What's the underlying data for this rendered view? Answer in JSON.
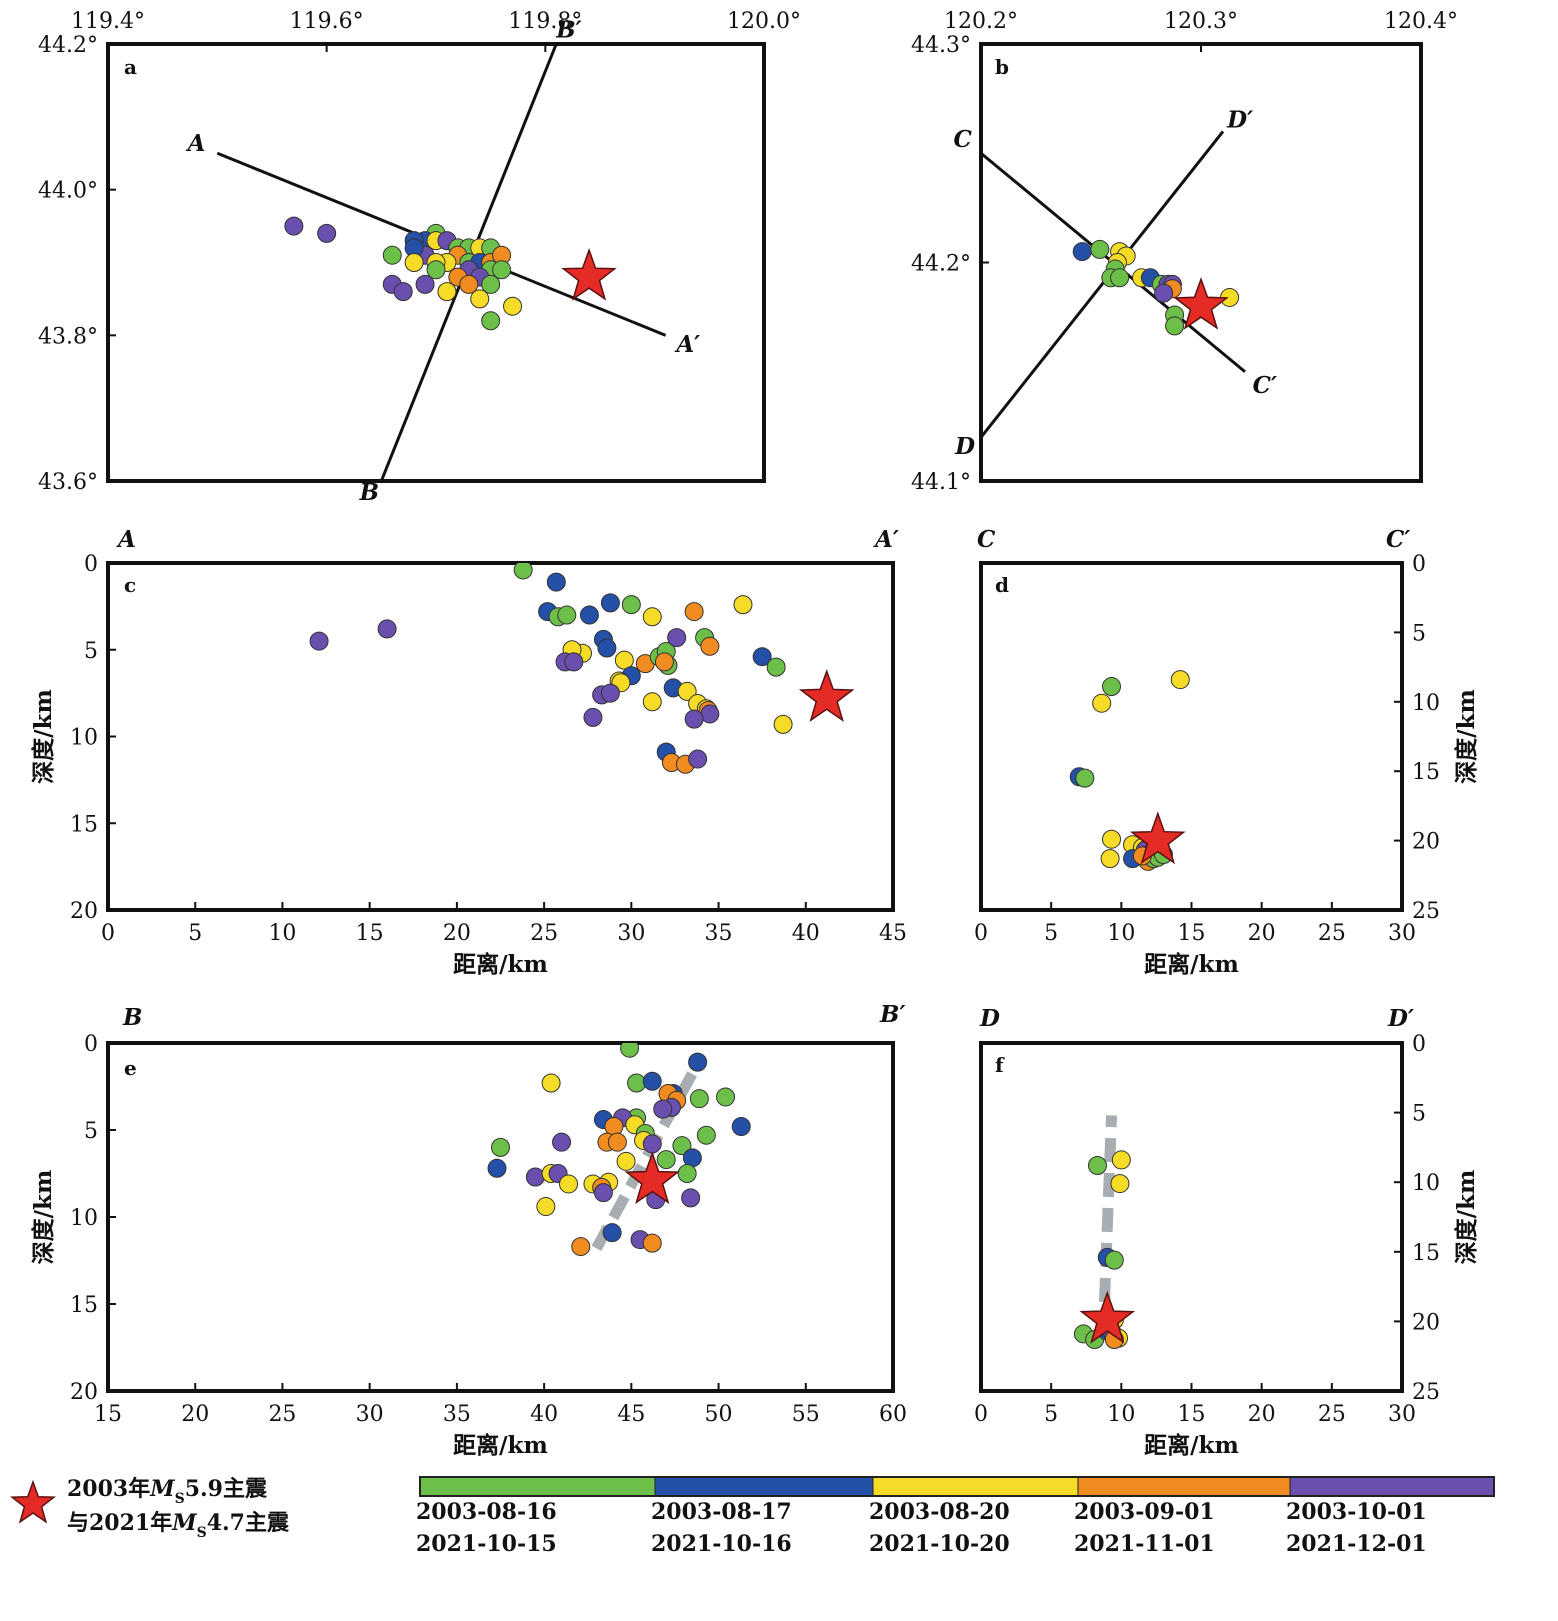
{
  "colors": {
    "g1": "#6cc04a",
    "g2": "#2450a8",
    "g3": "#f7dc27",
    "g4": "#f18c21",
    "g5": "#6a4fae",
    "star": "#e42b25",
    "fault": "#a8adb1"
  },
  "legend": {
    "star_label_1": "2003年MS5.9主震",
    "star_label_2": "与2021年MS4.7主震",
    "star_label_1_parts": [
      "2003年",
      "M",
      "S",
      "5.9主震"
    ],
    "star_label_2_parts": [
      "与2021年",
      "M",
      "S",
      "4.7主震"
    ],
    "colorbar": [
      {
        "label_2003": "2003-08-16",
        "label_2021": "2021-10-15"
      },
      {
        "label_2003": "2003-08-17",
        "label_2021": "2021-10-16"
      },
      {
        "label_2003": "2003-08-20",
        "label_2021": "2021-10-20"
      },
      {
        "label_2003": "2003-09-01",
        "label_2021": "2021-11-01"
      },
      {
        "label_2003": "2003-10-01",
        "label_2021": "2021-12-01"
      }
    ]
  },
  "chart_data": [
    {
      "panel": "a",
      "type": "scatter",
      "xticks": [
        "119.4°",
        "119.6°",
        "119.8°",
        "120.0°"
      ],
      "yticks": [
        "44.2°",
        "44.0°",
        "43.8°",
        "43.6°"
      ],
      "xlim": [
        119.4,
        120.0
      ],
      "ylim": [
        43.6,
        44.2
      ],
      "profiles": [
        {
          "start": "A",
          "end": "A′",
          "from": [
            119.5,
            44.05
          ],
          "to": [
            119.91,
            43.8
          ]
        },
        {
          "start": "B",
          "end": "B′",
          "from": [
            119.65,
            43.6
          ],
          "to": [
            119.81,
            44.2
          ]
        }
      ],
      "star": [
        119.84,
        43.88
      ],
      "points": [
        [
          119.57,
          43.95,
          5
        ],
        [
          119.6,
          43.94,
          5
        ],
        [
          119.7,
          43.94,
          1
        ],
        [
          119.69,
          43.93,
          2
        ],
        [
          119.7,
          43.93,
          3
        ],
        [
          119.71,
          43.93,
          5
        ],
        [
          119.72,
          43.92,
          1
        ],
        [
          119.68,
          43.93,
          2
        ],
        [
          119.69,
          43.91,
          5
        ],
        [
          119.73,
          43.92,
          1
        ],
        [
          119.74,
          43.92,
          3
        ],
        [
          119.75,
          43.92,
          1
        ],
        [
          119.66,
          43.91,
          1
        ],
        [
          119.68,
          43.92,
          2
        ],
        [
          119.72,
          43.91,
          4
        ],
        [
          119.73,
          43.9,
          1
        ],
        [
          119.74,
          43.9,
          2
        ],
        [
          119.75,
          43.9,
          4
        ],
        [
          119.76,
          43.91,
          4
        ],
        [
          119.75,
          43.89,
          1
        ],
        [
          119.76,
          43.89,
          1
        ],
        [
          119.71,
          43.9,
          3
        ],
        [
          119.7,
          43.9,
          3
        ],
        [
          119.73,
          43.89,
          5
        ],
        [
          119.72,
          43.88,
          4
        ],
        [
          119.7,
          43.89,
          1
        ],
        [
          119.68,
          43.9,
          3
        ],
        [
          119.74,
          43.88,
          5
        ],
        [
          119.75,
          43.87,
          1
        ],
        [
          119.73,
          43.87,
          4
        ],
        [
          119.66,
          43.87,
          5
        ],
        [
          119.69,
          43.87,
          5
        ],
        [
          119.67,
          43.86,
          5
        ],
        [
          119.71,
          43.86,
          3
        ],
        [
          119.74,
          43.85,
          3
        ],
        [
          119.77,
          43.84,
          3
        ],
        [
          119.75,
          43.82,
          1
        ]
      ]
    },
    {
      "panel": "b",
      "type": "scatter",
      "xticks": [
        "120.2°",
        "120.3°",
        "120.4°"
      ],
      "yticks": [
        "44.3°",
        "44.2°",
        "44.1°"
      ],
      "xlim": [
        120.2,
        120.4
      ],
      "ylim": [
        44.1,
        44.3
      ],
      "profiles": [
        {
          "start": "C",
          "end": "C′",
          "from": [
            120.2,
            44.25
          ],
          "to": [
            120.32,
            44.15
          ]
        },
        {
          "start": "D",
          "end": "D′",
          "from": [
            120.2,
            44.12
          ],
          "to": [
            120.31,
            44.26
          ]
        }
      ],
      "star": [
        120.3,
        44.18
      ],
      "points": [
        [
          120.246,
          44.205,
          2
        ],
        [
          120.254,
          44.206,
          1
        ],
        [
          120.263,
          44.205,
          3
        ],
        [
          120.266,
          44.203,
          3
        ],
        [
          120.262,
          44.2,
          3
        ],
        [
          120.261,
          44.197,
          1
        ],
        [
          120.259,
          44.193,
          1
        ],
        [
          120.263,
          44.193,
          1
        ],
        [
          120.273,
          44.193,
          3
        ],
        [
          120.277,
          44.193,
          2
        ],
        [
          120.282,
          44.19,
          1
        ],
        [
          120.285,
          44.19,
          5
        ],
        [
          120.287,
          44.19,
          5
        ],
        [
          120.287,
          44.188,
          4
        ],
        [
          120.283,
          44.186,
          5
        ],
        [
          120.313,
          44.184,
          3
        ],
        [
          120.288,
          44.176,
          1
        ],
        [
          120.288,
          44.171,
          1
        ]
      ]
    },
    {
      "panel": "c",
      "type": "scatter",
      "start": "A",
      "end": "A′",
      "xlabel": "距离/km",
      "ylabel": "深度/km",
      "xticks": [
        "0",
        "5",
        "10",
        "15",
        "20",
        "25",
        "30",
        "35",
        "40",
        "45"
      ],
      "yticks": [
        "0",
        "5",
        "10",
        "15",
        "20"
      ],
      "xlim": [
        0,
        45
      ],
      "ylim": [
        0,
        20
      ],
      "y_inverted": true,
      "star": [
        41.2,
        7.8
      ],
      "points": [
        [
          23.8,
          0.4,
          1
        ],
        [
          25.7,
          1.1,
          2
        ],
        [
          25.2,
          2.8,
          2
        ],
        [
          25.8,
          3.1,
          1
        ],
        [
          26.3,
          3.0,
          1
        ],
        [
          27.6,
          3.0,
          2
        ],
        [
          28.8,
          2.3,
          2
        ],
        [
          30.0,
          2.4,
          1
        ],
        [
          31.2,
          3.1,
          3
        ],
        [
          33.6,
          2.8,
          4
        ],
        [
          36.4,
          2.4,
          3
        ],
        [
          28.4,
          4.4,
          2
        ],
        [
          28.6,
          4.9,
          2
        ],
        [
          27.2,
          5.2,
          3
        ],
        [
          26.6,
          5.0,
          3
        ],
        [
          26.2,
          5.7,
          5
        ],
        [
          26.7,
          5.7,
          5
        ],
        [
          29.6,
          5.6,
          3
        ],
        [
          30.0,
          6.5,
          2
        ],
        [
          29.3,
          6.8,
          3
        ],
        [
          29.4,
          6.9,
          3
        ],
        [
          30.8,
          5.8,
          4
        ],
        [
          31.6,
          5.4,
          1
        ],
        [
          32.0,
          5.1,
          1
        ],
        [
          32.1,
          5.9,
          1
        ],
        [
          31.9,
          5.7,
          4
        ],
        [
          32.6,
          4.3,
          5
        ],
        [
          34.2,
          4.3,
          1
        ],
        [
          34.5,
          4.8,
          4
        ],
        [
          37.5,
          5.4,
          2
        ],
        [
          38.3,
          6.0,
          1
        ],
        [
          28.3,
          7.6,
          5
        ],
        [
          28.8,
          7.5,
          5
        ],
        [
          27.8,
          8.9,
          5
        ],
        [
          31.2,
          8.0,
          3
        ],
        [
          32.4,
          7.2,
          2
        ],
        [
          33.2,
          7.4,
          3
        ],
        [
          33.8,
          8.1,
          3
        ],
        [
          34.3,
          8.4,
          3
        ],
        [
          34.4,
          8.5,
          4
        ],
        [
          34.5,
          8.7,
          5
        ],
        [
          33.6,
          9.0,
          5
        ],
        [
          38.7,
          9.3,
          3
        ],
        [
          32.0,
          10.9,
          2
        ],
        [
          32.3,
          11.5,
          4
        ],
        [
          33.1,
          11.6,
          4
        ],
        [
          33.8,
          11.3,
          5
        ],
        [
          12.1,
          4.5,
          5
        ],
        [
          16.0,
          3.8,
          5
        ]
      ]
    },
    {
      "panel": "d",
      "type": "scatter",
      "start": "C",
      "end": "C′",
      "xlabel": "距离/km",
      "ylabel": "深度/km",
      "xticks": [
        "0",
        "5",
        "10",
        "15",
        "20",
        "25",
        "30"
      ],
      "yticks": [
        "0",
        "5",
        "10",
        "15",
        "20",
        "25"
      ],
      "xlim": [
        0,
        30
      ],
      "ylim": [
        0,
        25
      ],
      "y_inverted": true,
      "star": [
        12.6,
        20.0
      ],
      "points": [
        [
          9.3,
          8.9,
          1
        ],
        [
          8.6,
          10.1,
          3
        ],
        [
          14.2,
          8.4,
          3
        ],
        [
          7.0,
          15.4,
          2
        ],
        [
          7.4,
          15.5,
          1
        ],
        [
          9.3,
          19.9,
          3
        ],
        [
          10.8,
          20.3,
          3
        ],
        [
          11.5,
          20.5,
          3
        ],
        [
          12.0,
          20.4,
          5
        ],
        [
          11.7,
          20.7,
          5
        ],
        [
          12.8,
          20.9,
          1
        ],
        [
          12.2,
          20.9,
          1
        ],
        [
          11.9,
          21.0,
          2
        ],
        [
          9.2,
          21.3,
          3
        ],
        [
          10.8,
          21.3,
          2
        ],
        [
          11.9,
          21.5,
          4
        ],
        [
          12.3,
          21.3,
          1
        ],
        [
          12.6,
          21.2,
          1
        ],
        [
          13.0,
          21.0,
          1
        ],
        [
          11.5,
          21.1,
          4
        ]
      ]
    },
    {
      "panel": "e",
      "type": "scatter",
      "start": "B",
      "end": "B′",
      "xlabel": "距离/km",
      "ylabel": "深度/km",
      "xticks": [
        "15",
        "20",
        "25",
        "30",
        "35",
        "40",
        "45",
        "50",
        "55",
        "60"
      ],
      "yticks": [
        "0",
        "5",
        "10",
        "15",
        "20"
      ],
      "xlim": [
        15,
        60
      ],
      "ylim": [
        0,
        20
      ],
      "y_inverted": true,
      "star": [
        46.2,
        7.9
      ],
      "fault": [
        [
          43.0,
          11.8
        ],
        [
          48.8,
          1.2
        ]
      ],
      "points": [
        [
          44.9,
          0.3,
          1
        ],
        [
          48.8,
          1.1,
          2
        ],
        [
          40.4,
          2.3,
          3
        ],
        [
          45.3,
          2.3,
          1
        ],
        [
          46.2,
          2.2,
          2
        ],
        [
          47.4,
          2.9,
          2
        ],
        [
          47.1,
          2.9,
          4
        ],
        [
          47.6,
          3.3,
          4
        ],
        [
          48.9,
          3.2,
          1
        ],
        [
          50.4,
          3.1,
          1
        ],
        [
          47.3,
          3.7,
          5
        ],
        [
          46.8,
          3.8,
          5
        ],
        [
          45.3,
          4.3,
          1
        ],
        [
          44.5,
          4.3,
          5
        ],
        [
          43.4,
          4.4,
          2
        ],
        [
          44.0,
          4.8,
          4
        ],
        [
          45.2,
          4.7,
          3
        ],
        [
          45.8,
          5.2,
          1
        ],
        [
          51.3,
          4.8,
          2
        ],
        [
          49.3,
          5.3,
          1
        ],
        [
          43.6,
          5.7,
          4
        ],
        [
          44.2,
          5.7,
          4
        ],
        [
          45.7,
          5.6,
          3
        ],
        [
          46.2,
          5.8,
          5
        ],
        [
          47.9,
          5.9,
          1
        ],
        [
          41.0,
          5.7,
          5
        ],
        [
          37.5,
          6.0,
          1
        ],
        [
          48.5,
          6.6,
          2
        ],
        [
          47.0,
          6.7,
          1
        ],
        [
          44.7,
          6.8,
          3
        ],
        [
          37.3,
          7.2,
          2
        ],
        [
          39.5,
          7.7,
          5
        ],
        [
          40.4,
          7.5,
          3
        ],
        [
          40.8,
          7.5,
          5
        ],
        [
          48.2,
          7.5,
          1
        ],
        [
          42.8,
          8.1,
          3
        ],
        [
          43.7,
          8.0,
          3
        ],
        [
          43.3,
          8.3,
          4
        ],
        [
          43.4,
          8.6,
          5
        ],
        [
          41.4,
          8.1,
          3
        ],
        [
          48.4,
          8.9,
          5
        ],
        [
          46.4,
          9.0,
          5
        ],
        [
          40.1,
          9.4,
          3
        ],
        [
          43.9,
          10.9,
          2
        ],
        [
          45.5,
          11.3,
          5
        ],
        [
          46.2,
          11.5,
          4
        ],
        [
          42.1,
          11.7,
          4
        ]
      ]
    },
    {
      "panel": "f",
      "type": "scatter",
      "start": "D",
      "end": "D′",
      "xlabel": "距离/km",
      "ylabel": "深度/km",
      "xticks": [
        "0",
        "5",
        "10",
        "15",
        "20",
        "25",
        "30"
      ],
      "yticks": [
        "0",
        "5",
        "10",
        "15",
        "20",
        "25"
      ],
      "xlim": [
        0,
        30
      ],
      "ylim": [
        0,
        25
      ],
      "y_inverted": true,
      "star": [
        9.0,
        19.9
      ],
      "fault": [
        [
          8.8,
          18.6
        ],
        [
          9.3,
          5.2
        ]
      ],
      "points": [
        [
          8.3,
          8.8,
          1
        ],
        [
          10.0,
          8.4,
          3
        ],
        [
          9.9,
          10.1,
          3
        ],
        [
          9.0,
          15.4,
          2
        ],
        [
          9.5,
          15.6,
          1
        ],
        [
          9.5,
          19.9,
          3
        ],
        [
          7.3,
          20.9,
          1
        ],
        [
          8.1,
          21.3,
          1
        ],
        [
          9.0,
          20.7,
          2
        ],
        [
          9.4,
          20.9,
          5
        ],
        [
          9.8,
          21.2,
          3
        ],
        [
          9.5,
          21.3,
          4
        ]
      ]
    }
  ]
}
